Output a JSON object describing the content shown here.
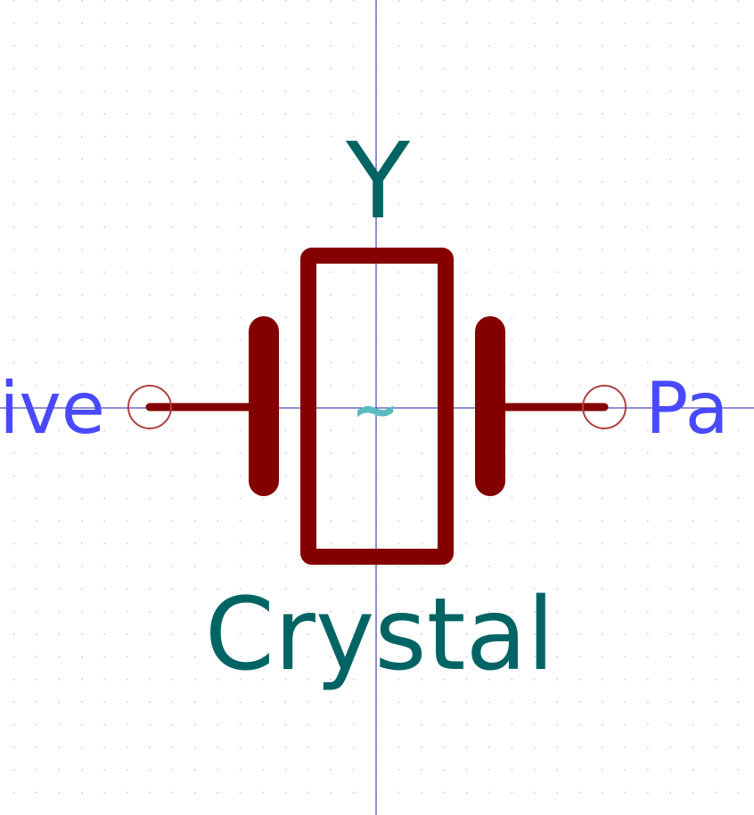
{
  "symbol": {
    "reference": "Y",
    "value": "Crystal",
    "pin_left_label": "ive",
    "pin_right_label": "Pa",
    "center_mark": "~"
  },
  "colors": {
    "background": "#ffffff",
    "grid_dot": "#c8c8c8",
    "axis": "#2222aa",
    "body": "#840000",
    "field_text": "#006464",
    "pin_text": "#4949ff",
    "pin_end": "#b04040",
    "center_mark": "#58bcc0"
  }
}
